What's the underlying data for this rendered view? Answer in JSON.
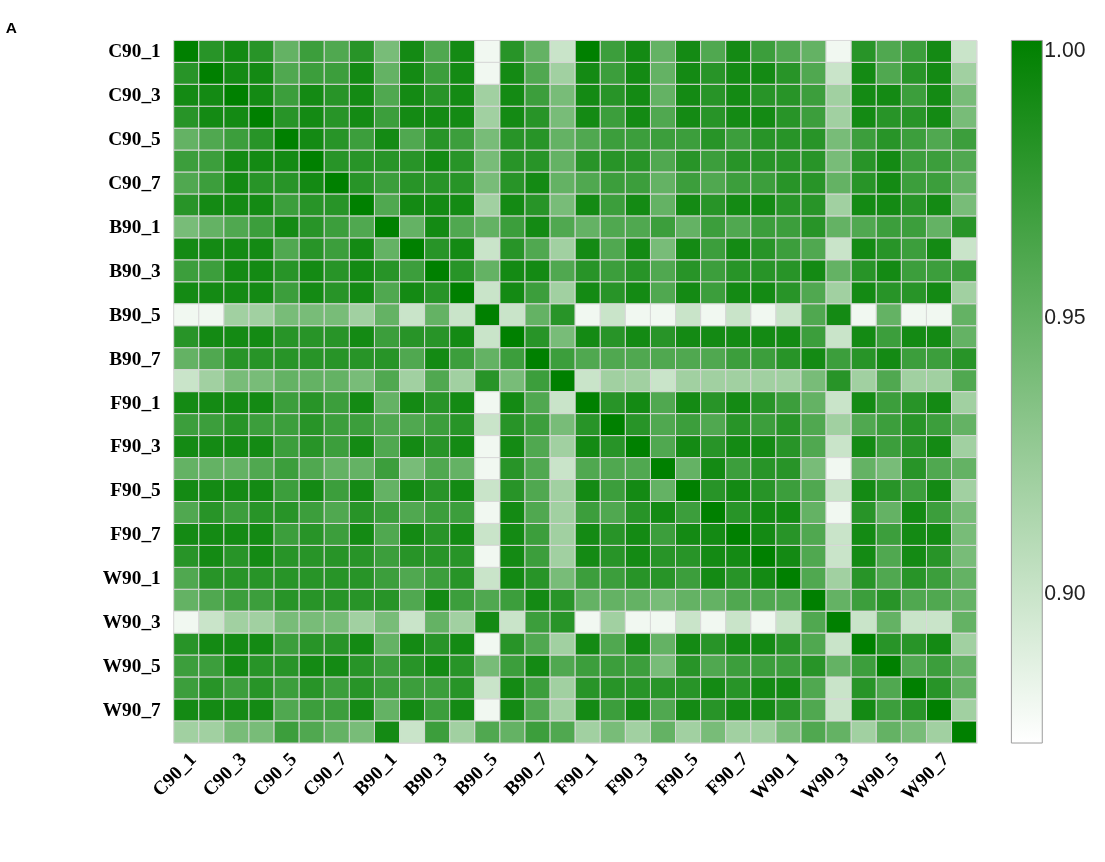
{
  "chart_data": {
    "type": "heatmap",
    "title": "A",
    "categories": [
      "C90_1",
      null,
      "C90_3",
      null,
      "C90_5",
      null,
      "C90_7",
      null,
      "B90_1",
      null,
      "B90_3",
      null,
      "B90_5",
      null,
      "B90_7",
      null,
      "F90_1",
      null,
      "F90_3",
      null,
      "F90_5",
      null,
      "F90_7",
      null,
      "W90_1",
      null,
      "W90_3",
      null,
      "W90_5",
      null,
      "W90_7",
      null
    ],
    "y_categories": [
      "C90_1",
      null,
      "C90_3",
      null,
      "C90_5",
      null,
      "C90_7",
      null,
      "B90_1",
      null,
      "B90_3",
      null,
      "B90_5",
      null,
      "B90_7",
      null,
      "F90_1",
      null,
      "F90_3",
      null,
      "F90_5",
      null,
      "F90_7",
      null,
      "W90_1",
      null,
      "W90_3",
      null,
      "W90_5",
      null,
      "W90_7",
      null
    ],
    "clim": [
      0.873,
      1.0
    ],
    "cticks": [
      {
        "value": 0.9,
        "label": "0.90"
      },
      {
        "value": 0.95,
        "label": "0.95"
      },
      {
        "value": 1.0,
        "label": "1.00"
      }
    ],
    "cells": [
      [
        1,
        0.98,
        0.99,
        0.98,
        0.95,
        0.97,
        0.96,
        0.98,
        0.94,
        0.99,
        0.96,
        0.99,
        0.88,
        0.98,
        0.95,
        0.9,
        1,
        0.97,
        0.99,
        0.95,
        0.99,
        0.96,
        0.99,
        0.97,
        0.96,
        0.95,
        0.88,
        0.98,
        0.96,
        0.97,
        0.99,
        0.9
      ],
      [
        0.98,
        1,
        0.99,
        0.99,
        0.96,
        0.97,
        0.97,
        0.99,
        0.95,
        0.99,
        0.97,
        0.99,
        0.88,
        0.99,
        0.96,
        0.92,
        0.99,
        0.97,
        0.99,
        0.95,
        0.99,
        0.98,
        0.99,
        0.99,
        0.98,
        0.96,
        0.9,
        0.99,
        0.96,
        0.98,
        0.99,
        0.92
      ],
      [
        0.99,
        0.99,
        1,
        0.99,
        0.97,
        0.99,
        0.98,
        0.99,
        0.96,
        0.99,
        0.98,
        0.99,
        0.92,
        0.99,
        0.97,
        0.94,
        0.99,
        0.98,
        0.99,
        0.95,
        0.99,
        0.98,
        0.99,
        0.98,
        0.98,
        0.97,
        0.92,
        0.99,
        0.99,
        0.97,
        0.99,
        0.94
      ],
      [
        0.98,
        0.99,
        0.99,
        1,
        0.98,
        0.99,
        0.98,
        0.99,
        0.97,
        0.99,
        0.99,
        0.99,
        0.92,
        0.99,
        0.98,
        0.94,
        0.99,
        0.97,
        0.99,
        0.96,
        0.99,
        0.98,
        0.99,
        0.99,
        0.98,
        0.97,
        0.92,
        0.99,
        0.98,
        0.98,
        0.99,
        0.94
      ],
      [
        0.95,
        0.96,
        0.97,
        0.98,
        1,
        0.99,
        0.98,
        0.97,
        0.99,
        0.96,
        0.98,
        0.97,
        0.94,
        0.98,
        0.98,
        0.95,
        0.96,
        0.97,
        0.97,
        0.97,
        0.97,
        0.98,
        0.97,
        0.98,
        0.98,
        0.98,
        0.94,
        0.97,
        0.98,
        0.97,
        0.96,
        0.97
      ],
      [
        0.97,
        0.97,
        0.99,
        0.99,
        0.99,
        1,
        0.98,
        0.98,
        0.98,
        0.98,
        0.99,
        0.98,
        0.94,
        0.98,
        0.98,
        0.95,
        0.98,
        0.98,
        0.98,
        0.96,
        0.98,
        0.97,
        0.98,
        0.98,
        0.98,
        0.98,
        0.94,
        0.98,
        0.99,
        0.97,
        0.97,
        0.96
      ],
      [
        0.96,
        0.97,
        0.99,
        0.98,
        0.98,
        0.99,
        1,
        0.98,
        0.97,
        0.98,
        0.98,
        0.98,
        0.94,
        0.98,
        0.99,
        0.95,
        0.96,
        0.97,
        0.97,
        0.95,
        0.97,
        0.96,
        0.97,
        0.97,
        0.98,
        0.98,
        0.95,
        0.98,
        0.99,
        0.97,
        0.97,
        0.95
      ],
      [
        0.98,
        0.99,
        0.99,
        0.99,
        0.97,
        0.98,
        0.98,
        1,
        0.96,
        0.99,
        0.99,
        0.99,
        0.92,
        0.99,
        0.98,
        0.94,
        0.99,
        0.97,
        0.99,
        0.95,
        0.99,
        0.98,
        0.99,
        0.99,
        0.98,
        0.98,
        0.92,
        0.99,
        0.99,
        0.98,
        0.99,
        0.94
      ],
      [
        0.94,
        0.95,
        0.96,
        0.97,
        0.99,
        0.98,
        0.97,
        0.96,
        1,
        0.95,
        0.99,
        0.96,
        0.95,
        0.97,
        0.99,
        0.96,
        0.95,
        0.96,
        0.96,
        0.97,
        0.95,
        0.97,
        0.96,
        0.97,
        0.97,
        0.98,
        0.95,
        0.96,
        0.97,
        0.97,
        0.95,
        0.98
      ],
      [
        0.99,
        0.99,
        0.99,
        0.99,
        0.96,
        0.98,
        0.97,
        0.99,
        0.95,
        1,
        0.98,
        0.99,
        0.9,
        0.98,
        0.96,
        0.92,
        0.99,
        0.96,
        0.99,
        0.94,
        0.99,
        0.97,
        0.99,
        0.98,
        0.97,
        0.96,
        0.9,
        0.99,
        0.98,
        0.97,
        0.99,
        0.9
      ],
      [
        0.97,
        0.97,
        0.99,
        0.99,
        0.98,
        0.99,
        0.98,
        0.99,
        0.98,
        0.97,
        1,
        0.98,
        0.95,
        0.99,
        0.99,
        0.96,
        0.98,
        0.97,
        0.98,
        0.96,
        0.98,
        0.97,
        0.98,
        0.98,
        0.98,
        0.99,
        0.95,
        0.98,
        0.99,
        0.97,
        0.97,
        0.97
      ],
      [
        0.99,
        0.99,
        0.99,
        0.99,
        0.97,
        0.99,
        0.98,
        0.99,
        0.96,
        0.99,
        0.98,
        1,
        0.9,
        0.99,
        0.97,
        0.92,
        0.99,
        0.98,
        0.99,
        0.96,
        0.99,
        0.97,
        0.99,
        0.99,
        0.98,
        0.96,
        0.92,
        0.99,
        0.98,
        0.98,
        0.99,
        0.92
      ],
      [
        0.88,
        0.88,
        0.92,
        0.92,
        0.94,
        0.94,
        0.94,
        0.92,
        0.95,
        0.9,
        0.95,
        0.9,
        1,
        0.9,
        0.95,
        0.98,
        0.88,
        0.9,
        0.88,
        0.88,
        0.9,
        0.88,
        0.9,
        0.88,
        0.9,
        0.96,
        0.99,
        0.88,
        0.95,
        0.88,
        0.88,
        0.95
      ],
      [
        0.98,
        0.99,
        0.99,
        0.99,
        0.98,
        0.98,
        0.98,
        0.99,
        0.97,
        0.98,
        0.98,
        0.99,
        0.9,
        1,
        0.98,
        0.94,
        0.99,
        0.98,
        0.99,
        0.98,
        0.99,
        0.99,
        0.99,
        0.99,
        0.99,
        0.97,
        0.9,
        0.99,
        0.97,
        0.99,
        0.99,
        0.95
      ],
      [
        0.95,
        0.96,
        0.98,
        0.98,
        0.98,
        0.98,
        0.98,
        0.98,
        0.98,
        0.96,
        0.99,
        0.97,
        0.95,
        0.97,
        1,
        0.97,
        0.96,
        0.96,
        0.96,
        0.96,
        0.96,
        0.96,
        0.97,
        0.97,
        0.98,
        0.99,
        0.97,
        0.98,
        0.99,
        0.97,
        0.97,
        0.98
      ],
      [
        0.9,
        0.92,
        0.94,
        0.94,
        0.95,
        0.95,
        0.95,
        0.94,
        0.96,
        0.92,
        0.96,
        0.92,
        0.98,
        0.94,
        0.97,
        1,
        0.9,
        0.92,
        0.92,
        0.9,
        0.92,
        0.92,
        0.92,
        0.92,
        0.92,
        0.94,
        0.98,
        0.92,
        0.96,
        0.92,
        0.92,
        0.96
      ],
      [
        0.99,
        0.99,
        0.99,
        0.99,
        0.97,
        0.98,
        0.97,
        0.99,
        0.95,
        0.99,
        0.98,
        0.99,
        0.88,
        0.99,
        0.96,
        0.9,
        1,
        0.98,
        0.99,
        0.96,
        0.99,
        0.98,
        0.99,
        0.98,
        0.97,
        0.95,
        0.9,
        0.99,
        0.97,
        0.98,
        0.99,
        0.92
      ],
      [
        0.97,
        0.97,
        0.98,
        0.97,
        0.97,
        0.98,
        0.97,
        0.97,
        0.96,
        0.96,
        0.97,
        0.98,
        0.9,
        0.98,
        0.97,
        0.94,
        0.98,
        1,
        0.98,
        0.96,
        0.97,
        0.96,
        0.98,
        0.97,
        0.98,
        0.96,
        0.92,
        0.96,
        0.97,
        0.98,
        0.97,
        0.95
      ],
      [
        0.99,
        0.99,
        0.99,
        0.99,
        0.97,
        0.98,
        0.97,
        0.99,
        0.96,
        0.99,
        0.98,
        0.99,
        0.88,
        0.99,
        0.96,
        0.92,
        0.99,
        0.98,
        1,
        0.96,
        0.99,
        0.98,
        0.99,
        0.99,
        0.98,
        0.96,
        0.9,
        0.99,
        0.97,
        0.98,
        0.99,
        0.92
      ],
      [
        0.95,
        0.95,
        0.95,
        0.96,
        0.97,
        0.96,
        0.95,
        0.95,
        0.97,
        0.94,
        0.96,
        0.95,
        0.88,
        0.98,
        0.96,
        0.9,
        0.96,
        0.96,
        0.96,
        1,
        0.95,
        0.99,
        0.97,
        0.98,
        0.98,
        0.94,
        0.88,
        0.95,
        0.94,
        0.98,
        0.96,
        0.95
      ],
      [
        0.99,
        0.99,
        0.99,
        0.99,
        0.97,
        0.99,
        0.97,
        0.99,
        0.95,
        0.99,
        0.98,
        0.99,
        0.9,
        0.98,
        0.96,
        0.92,
        0.99,
        0.97,
        0.99,
        0.95,
        1,
        0.98,
        0.99,
        0.98,
        0.97,
        0.96,
        0.9,
        0.99,
        0.98,
        0.97,
        0.99,
        0.92
      ],
      [
        0.96,
        0.98,
        0.97,
        0.98,
        0.98,
        0.97,
        0.96,
        0.98,
        0.97,
        0.96,
        0.97,
        0.97,
        0.88,
        0.99,
        0.96,
        0.92,
        0.97,
        0.96,
        0.98,
        0.99,
        0.97,
        1,
        0.98,
        0.99,
        0.99,
        0.95,
        0.88,
        0.98,
        0.95,
        0.99,
        0.97,
        0.94
      ],
      [
        0.99,
        0.99,
        0.99,
        0.99,
        0.97,
        0.98,
        0.97,
        0.99,
        0.96,
        0.99,
        0.98,
        0.99,
        0.9,
        0.99,
        0.97,
        0.92,
        0.99,
        0.98,
        0.99,
        0.97,
        0.99,
        0.99,
        1,
        0.99,
        0.98,
        0.96,
        0.9,
        0.99,
        0.97,
        0.99,
        0.99,
        0.94
      ],
      [
        0.98,
        0.99,
        0.98,
        0.99,
        0.98,
        0.98,
        0.98,
        0.98,
        0.97,
        0.98,
        0.98,
        0.98,
        0.88,
        0.99,
        0.97,
        0.92,
        0.99,
        0.98,
        0.99,
        0.98,
        0.98,
        0.99,
        0.99,
        1,
        0.99,
        0.96,
        0.9,
        0.99,
        0.96,
        0.99,
        0.98,
        0.94
      ],
      [
        0.96,
        0.98,
        0.98,
        0.98,
        0.98,
        0.98,
        0.98,
        0.98,
        0.97,
        0.96,
        0.97,
        0.98,
        0.9,
        0.99,
        0.98,
        0.94,
        0.97,
        0.97,
        0.98,
        0.98,
        0.97,
        0.99,
        0.98,
        0.99,
        1,
        0.96,
        0.92,
        0.98,
        0.96,
        0.98,
        0.97,
        0.95
      ],
      [
        0.95,
        0.96,
        0.97,
        0.97,
        0.98,
        0.98,
        0.98,
        0.98,
        0.98,
        0.96,
        0.99,
        0.97,
        0.96,
        0.97,
        0.99,
        0.98,
        0.95,
        0.95,
        0.95,
        0.94,
        0.95,
        0.95,
        0.96,
        0.96,
        0.96,
        1,
        0.95,
        0.97,
        0.98,
        0.96,
        0.96,
        0.95
      ],
      [
        0.88,
        0.9,
        0.92,
        0.92,
        0.94,
        0.94,
        0.94,
        0.92,
        0.94,
        0.9,
        0.95,
        0.92,
        0.99,
        0.9,
        0.97,
        0.98,
        0.88,
        0.92,
        0.88,
        0.88,
        0.9,
        0.88,
        0.9,
        0.88,
        0.9,
        0.96,
        1,
        0.9,
        0.95,
        0.9,
        0.9,
        0.95
      ],
      [
        0.98,
        0.99,
        0.99,
        0.99,
        0.97,
        0.98,
        0.98,
        0.99,
        0.95,
        0.99,
        0.98,
        0.99,
        0.88,
        0.98,
        0.96,
        0.92,
        0.99,
        0.96,
        0.99,
        0.95,
        0.99,
        0.98,
        0.99,
        0.99,
        0.98,
        0.96,
        0.9,
        1,
        0.98,
        0.98,
        0.99,
        0.92
      ],
      [
        0.97,
        0.97,
        0.99,
        0.98,
        0.98,
        0.99,
        0.99,
        0.98,
        0.97,
        0.98,
        0.99,
        0.98,
        0.94,
        0.97,
        0.99,
        0.96,
        0.97,
        0.97,
        0.97,
        0.94,
        0.98,
        0.96,
        0.97,
        0.97,
        0.97,
        0.98,
        0.95,
        0.97,
        1,
        0.96,
        0.97,
        0.95
      ],
      [
        0.97,
        0.98,
        0.97,
        0.98,
        0.97,
        0.98,
        0.97,
        0.98,
        0.97,
        0.97,
        0.97,
        0.98,
        0.9,
        0.99,
        0.97,
        0.92,
        0.98,
        0.98,
        0.98,
        0.98,
        0.98,
        0.99,
        0.98,
        0.99,
        0.99,
        0.96,
        0.9,
        0.98,
        0.96,
        1,
        0.98,
        0.95
      ],
      [
        0.99,
        0.99,
        0.99,
        0.99,
        0.96,
        0.97,
        0.97,
        0.99,
        0.95,
        0.99,
        0.97,
        0.99,
        0.88,
        0.99,
        0.96,
        0.92,
        0.99,
        0.97,
        0.99,
        0.96,
        0.99,
        0.98,
        0.99,
        0.99,
        0.98,
        0.96,
        0.9,
        0.99,
        0.97,
        0.98,
        1,
        0.92
      ],
      [
        0.92,
        0.92,
        0.94,
        0.94,
        0.97,
        0.96,
        0.95,
        0.94,
        0.99,
        0.9,
        0.97,
        0.92,
        0.96,
        0.95,
        0.97,
        0.96,
        0.92,
        0.94,
        0.92,
        0.95,
        0.92,
        0.94,
        0.92,
        0.92,
        0.94,
        0.96,
        0.95,
        0.92,
        0.95,
        0.94,
        0.92,
        1
      ]
    ]
  }
}
